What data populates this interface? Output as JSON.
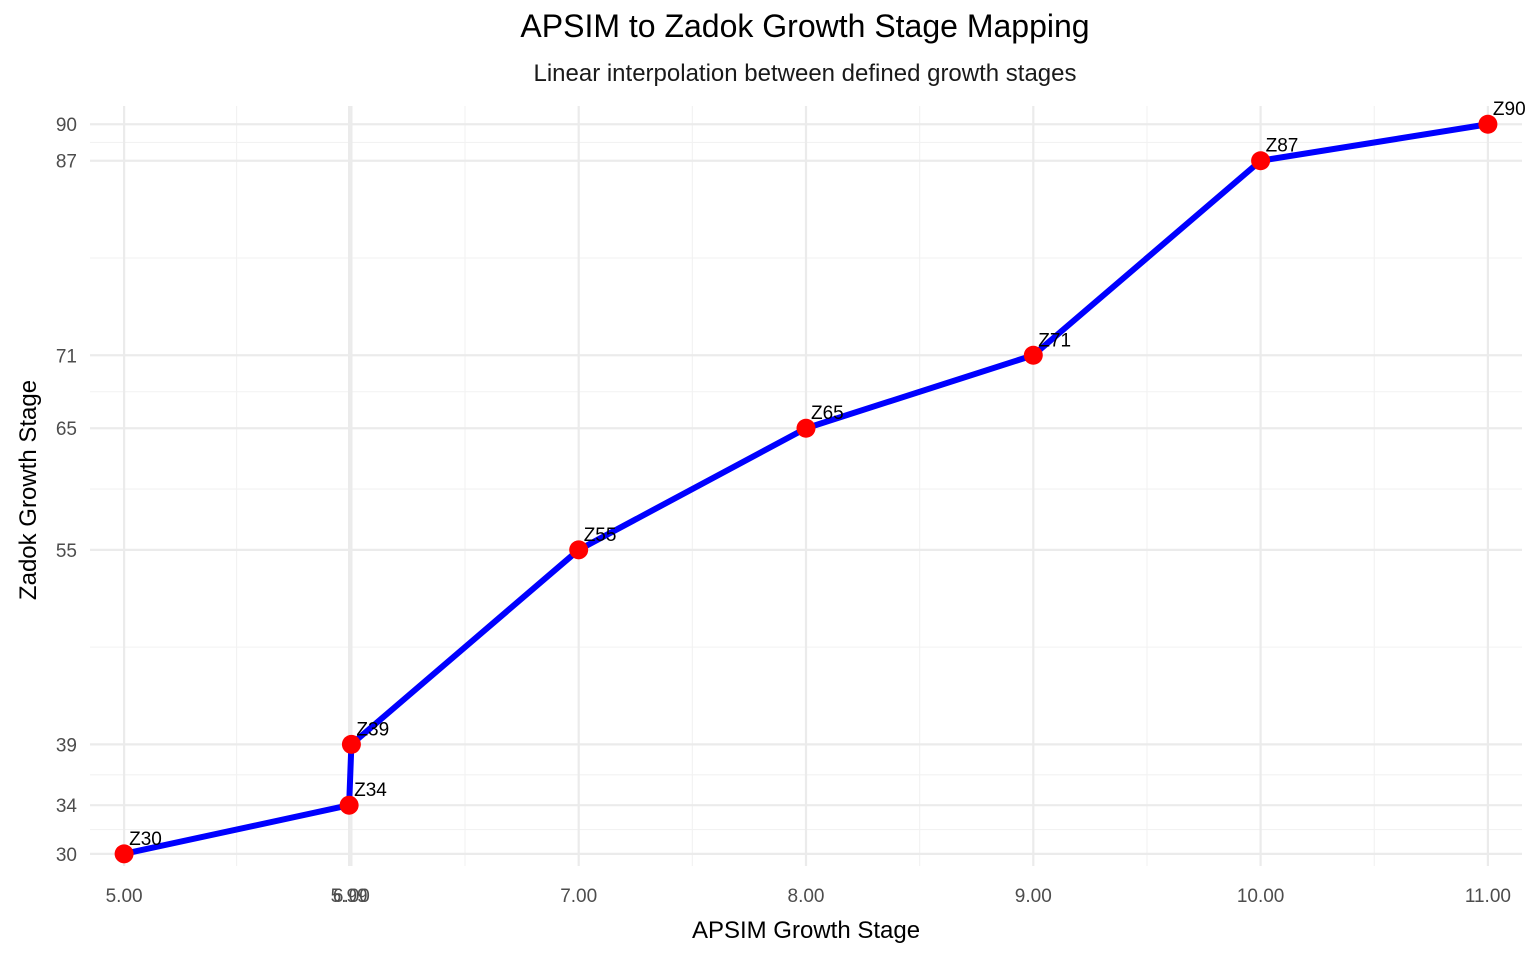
{
  "chart_data": {
    "type": "line",
    "title": "APSIM to Zadok Growth Stage Mapping",
    "subtitle": "Linear interpolation between defined growth stages",
    "xlabel": "APSIM Growth Stage",
    "ylabel": "Zadok Growth Stage",
    "xlim": [
      4.85,
      11.15
    ],
    "ylim": [
      29,
      91.5
    ],
    "x_ticks": [
      5.0,
      5.99,
      6.0,
      7.0,
      8.0,
      9.0,
      10.0,
      11.0
    ],
    "x_tick_labels": [
      "5.00",
      "5.99",
      "6.00",
      "7.00",
      "8.00",
      "9.00",
      "10.00",
      "11.00"
    ],
    "y_ticks": [
      30,
      34,
      39,
      55,
      65,
      71,
      87,
      90
    ],
    "y_tick_labels": [
      "30",
      "34",
      "39",
      "55",
      "65",
      "71",
      "87",
      "90"
    ],
    "grid": true,
    "series": [
      {
        "x": [
          5.0,
          5.99,
          6.0,
          7.0,
          8.0,
          9.0,
          10.0,
          11.0
        ],
        "y": [
          30,
          34,
          39,
          55,
          65,
          71,
          87,
          90
        ],
        "point_labels": [
          "Z30",
          "Z34",
          "Z39",
          "Z55",
          "Z65",
          "Z71",
          "Z87",
          "Z90"
        ],
        "line_color": "#0000ff",
        "point_color": "#ff0000"
      }
    ]
  }
}
